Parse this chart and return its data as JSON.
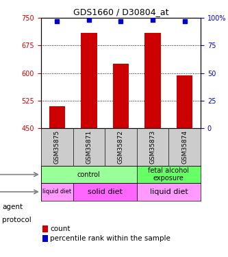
{
  "title": "GDS1660 / D30804_at",
  "samples": [
    "GSM35875",
    "GSM35871",
    "GSM35872",
    "GSM35873",
    "GSM35874"
  ],
  "bar_values": [
    510,
    710,
    625,
    710,
    593
  ],
  "percentile_values": [
    97,
    98,
    97,
    98,
    97
  ],
  "ylim_left": [
    450,
    750
  ],
  "ylim_right": [
    0,
    100
  ],
  "yticks_left": [
    450,
    525,
    600,
    675,
    750
  ],
  "yticks_right": [
    0,
    25,
    50,
    75,
    100
  ],
  "yticks_right_labels": [
    "0",
    "25",
    "50",
    "75",
    "100%"
  ],
  "bar_color": "#cc0000",
  "percentile_color": "#0000cc",
  "bar_bottom": 450,
  "agent_labels": [
    {
      "text": "control",
      "span": [
        0,
        3
      ],
      "color": "#99ff99"
    },
    {
      "text": "fetal alcohol\nexposure",
      "span": [
        3,
        5
      ],
      "color": "#66ff66"
    }
  ],
  "protocol_labels": [
    {
      "text": "liquid diet",
      "span": [
        0,
        1
      ],
      "color": "#ff99ff",
      "fontsize": 6
    },
    {
      "text": "solid diet",
      "span": [
        1,
        3
      ],
      "color": "#ff66ff",
      "fontsize": 8
    },
    {
      "text": "liquid diet",
      "span": [
        3,
        5
      ],
      "color": "#ff99ff",
      "fontsize": 8
    }
  ],
  "agent_row_label": "agent",
  "protocol_row_label": "protocol",
  "legend_count_color": "#cc0000",
  "legend_percentile_color": "#0000cc",
  "bg_color": "#ffffff",
  "sample_bg_color": "#cccccc",
  "grid_color": "#000000"
}
